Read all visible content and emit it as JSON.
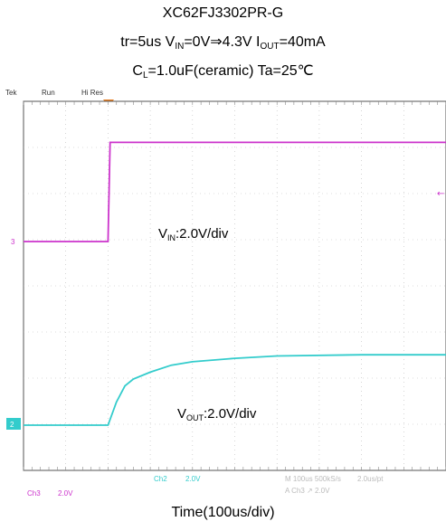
{
  "chart_data": {
    "type": "line",
    "title": "XC62FJ3302PR-G",
    "conditions": {
      "tr": "tr=5us",
      "vin_prefix": "V",
      "vin_sub": "IN",
      "vin_value": "=0V⇒4.3V",
      "iout_prefix": "I",
      "iout_sub": "OUT",
      "iout_value": "=40mA",
      "cl_prefix": "C",
      "cl_sub": "L",
      "cl_value": "=1.0uF(ceramic) Ta=25℃"
    },
    "xlabel": "Time(100us/div)",
    "x_units": "us",
    "xlim": [
      0,
      1000
    ],
    "grid": true,
    "scope_header": {
      "brand": "Tek",
      "mode": "Run",
      "acq": "Hi Res"
    },
    "scope_footer": {
      "ch3": "Ch3",
      "ch3_scale": "2.0V",
      "ch2": "Ch2",
      "ch2_scale": "2.0V",
      "timebase": "M 100us 500kS/s",
      "sample": "2.0us/pt",
      "trigger": "A Ch3 ↗ 2.0V"
    },
    "channel_markers": {
      "vin": "3",
      "vout": "2"
    },
    "series": [
      {
        "label_prefix": "V",
        "label_sub": "IN",
        "label_suffix": ":2.0V/div",
        "color": "#cc33cc",
        "x": [
          0,
          200,
          205,
          1000
        ],
        "y": [
          0,
          0,
          4.3,
          4.3
        ]
      },
      {
        "label_prefix": "V",
        "label_sub": "OUT",
        "label_suffix": ":2.0V/div",
        "color": "#33cccc",
        "x": [
          0,
          200,
          220,
          240,
          260,
          300,
          350,
          400,
          500,
          600,
          800,
          1000
        ],
        "y": [
          0,
          0,
          1.0,
          1.7,
          2.0,
          2.3,
          2.6,
          2.75,
          2.9,
          3.0,
          3.05,
          3.05
        ]
      }
    ]
  }
}
